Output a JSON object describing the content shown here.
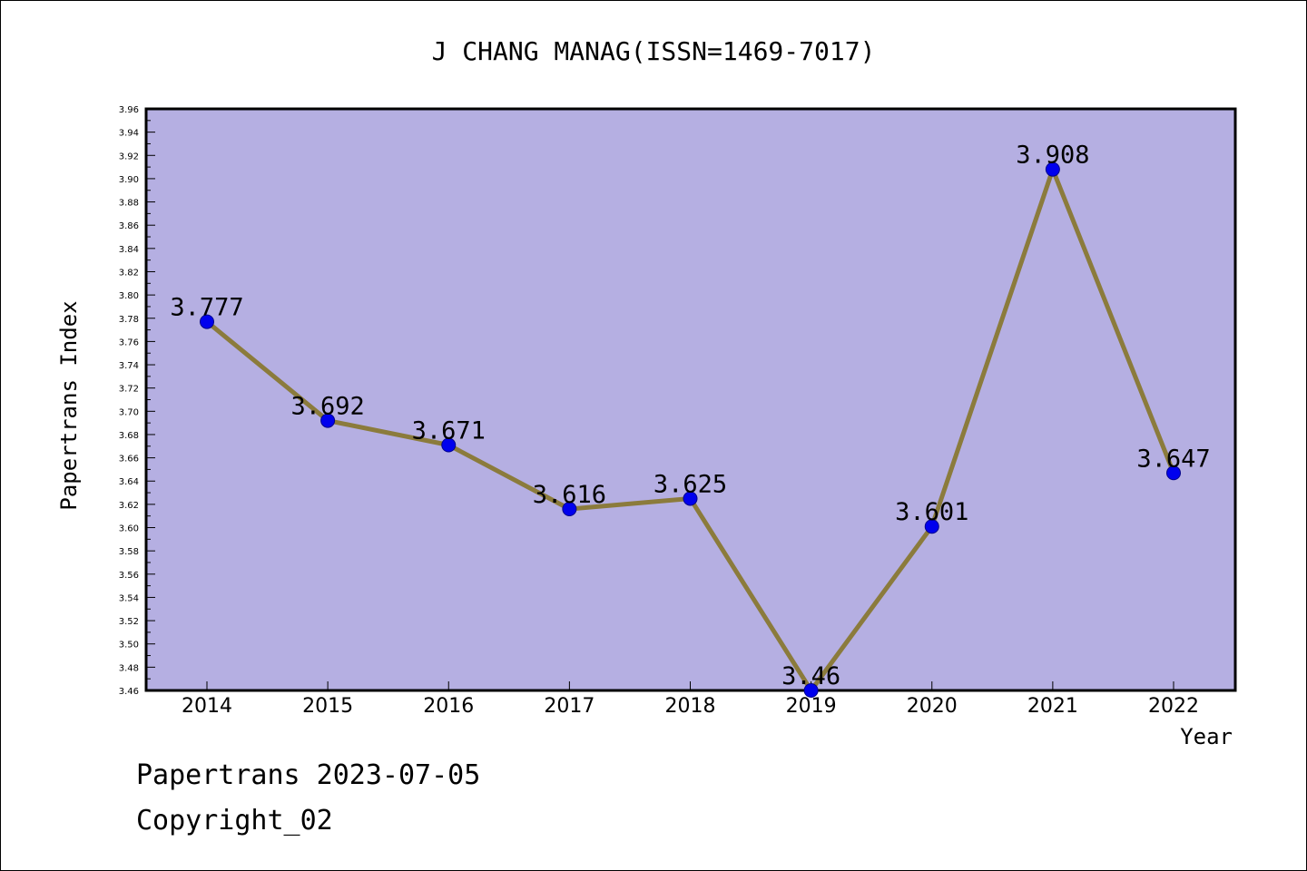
{
  "chart_data": {
    "type": "line",
    "title": "J CHANG MANAG(ISSN=1469-7017)",
    "xlabel": "Year",
    "ylabel": "Papertrans Index",
    "categories": [
      "2014",
      "2015",
      "2016",
      "2017",
      "2018",
      "2019",
      "2020",
      "2021",
      "2022"
    ],
    "values": [
      3.777,
      3.692,
      3.671,
      3.616,
      3.625,
      3.46,
      3.601,
      3.908,
      3.647
    ],
    "data_labels": [
      "3.777",
      "3.692",
      "3.671",
      "3.616",
      "3.625",
      "3.46",
      "3.601",
      "3.908",
      "3.647"
    ],
    "ylim": [
      3.46,
      3.96
    ],
    "y_ticks": [
      "3.46",
      "3.48",
      "3.50",
      "3.52",
      "3.54",
      "3.56",
      "3.58",
      "3.60",
      "3.62",
      "3.64",
      "3.66",
      "3.68",
      "3.70",
      "3.72",
      "3.74",
      "3.76",
      "3.78",
      "3.80",
      "3.82",
      "3.84",
      "3.86",
      "3.88",
      "3.90",
      "3.92",
      "3.94",
      "3.96"
    ],
    "grid": false,
    "colors": {
      "plot_bg": "#b5afe2",
      "line": "#8b7b3c",
      "marker": "#0000ee"
    }
  },
  "footer": {
    "line1": "Papertrans 2023-07-05",
    "line2": "Copyright_02"
  }
}
